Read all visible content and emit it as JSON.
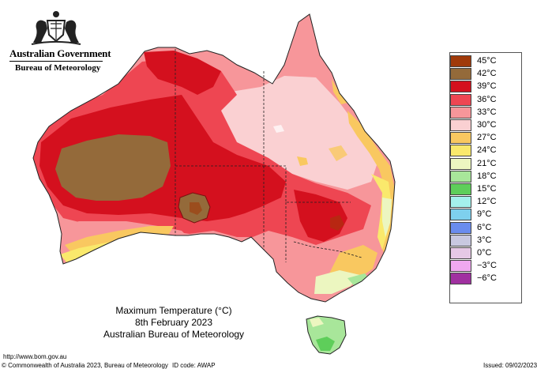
{
  "header": {
    "government": "Australian Government",
    "bureau": "Bureau of Meteorology",
    "crest_icon": "coat-of-arms-icon"
  },
  "map": {
    "title": "Maximum Temperature (°C)",
    "date": "8th February 2023",
    "source": "Australian Bureau of Meteorology",
    "colors": {
      "t45": "#a03a0a",
      "t42": "#946a3a",
      "t39": "#d4101e",
      "t36": "#ee4652",
      "t33": "#f7969a",
      "t30": "#fad0d2",
      "t27": "#f9c860",
      "t24": "#fae96c",
      "t21": "#ecf6c0",
      "t18": "#a8e69a",
      "t15": "#5ece5a",
      "t12": "#a4f0ec",
      "t9": "#7ed0ee",
      "t6": "#6a8cee",
      "t3": "#c8c8e0",
      "t0": "#e6c8e6",
      "tm3": "#f0a8f0",
      "tm6": "#a030a0"
    }
  },
  "legend": {
    "items": [
      {
        "label": "45°C",
        "color": "#a03a0a"
      },
      {
        "label": "42°C",
        "color": "#946a3a"
      },
      {
        "label": "39°C",
        "color": "#d4101e"
      },
      {
        "label": "36°C",
        "color": "#ee4652"
      },
      {
        "label": "33°C",
        "color": "#f7969a"
      },
      {
        "label": "30°C",
        "color": "#fad0d2"
      },
      {
        "label": "27°C",
        "color": "#f9c860"
      },
      {
        "label": "24°C",
        "color": "#fae96c"
      },
      {
        "label": "21°C",
        "color": "#ecf6c0"
      },
      {
        "label": "18°C",
        "color": "#a8e69a"
      },
      {
        "label": "15°C",
        "color": "#5ece5a"
      },
      {
        "label": "12°C",
        "color": "#a4f0ec"
      },
      {
        "label": "9°C",
        "color": "#7ed0ee"
      },
      {
        "label": "6°C",
        "color": "#6a8cee"
      },
      {
        "label": "3°C",
        "color": "#c8c8e0"
      },
      {
        "label": "0°C",
        "color": "#e6c8e6"
      },
      {
        "label": "−3°C",
        "color": "#f0a8f0"
      },
      {
        "label": "−6°C",
        "color": "#a030a0"
      }
    ]
  },
  "footer": {
    "url": "http://www.bom.gov.au",
    "copyright": "© Commonwealth of Australia 2023, Bureau of Meteorology",
    "id_code": "ID code: AWAP",
    "issued": "Issued: 09/02/2023"
  }
}
